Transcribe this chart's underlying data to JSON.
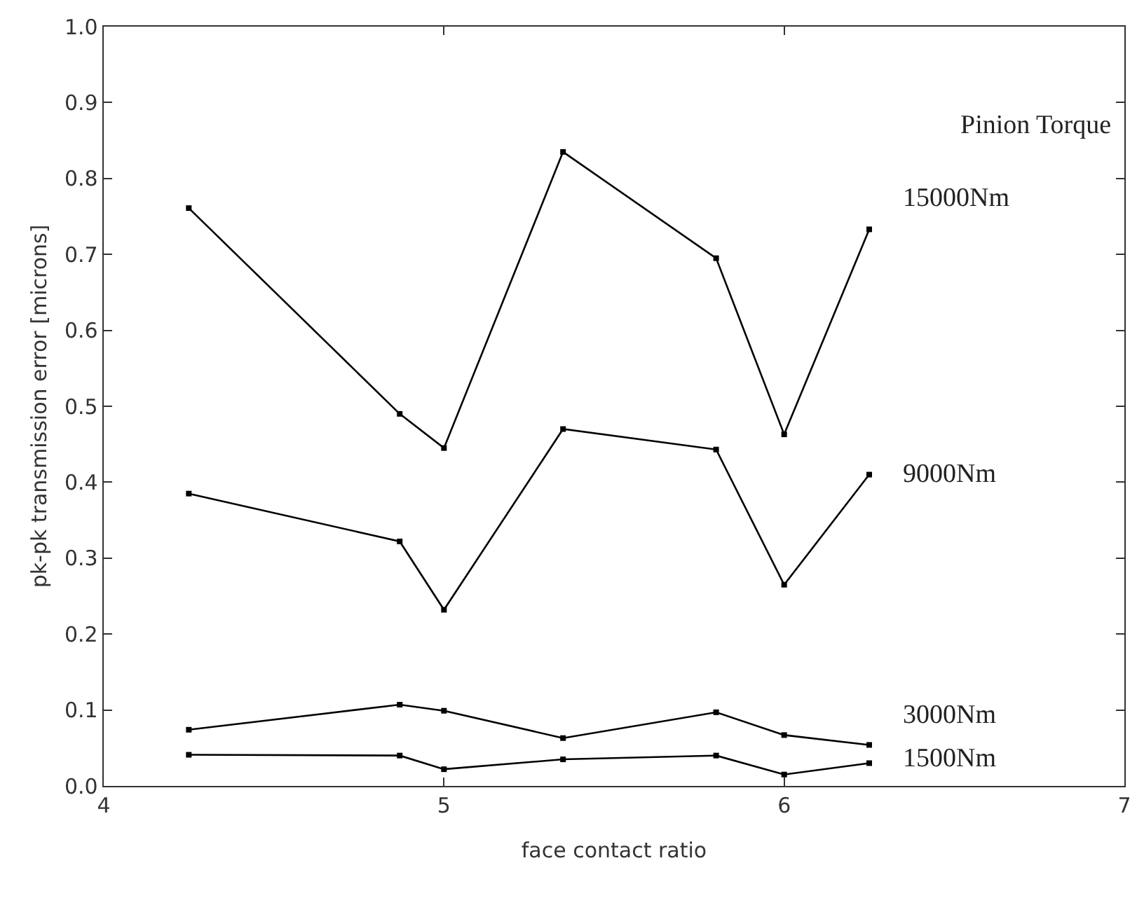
{
  "chart_data": {
    "type": "line",
    "xlabel": "face contact ratio",
    "ylabel": "pk-pk transmission error [microns]",
    "legend_title": "Pinion Torque",
    "x": [
      4.25,
      4.87,
      5.0,
      5.35,
      5.8,
      6.0,
      6.25
    ],
    "series": [
      {
        "name": "15000Nm",
        "color": "#000000",
        "values": [
          0.761,
          0.49,
          0.445,
          0.835,
          0.695,
          0.463,
          0.733
        ]
      },
      {
        "name": "9000Nm",
        "color": "#000000",
        "values": [
          0.385,
          0.322,
          0.232,
          0.47,
          0.443,
          0.265,
          0.41
        ]
      },
      {
        "name": "3000Nm",
        "color": "#000000",
        "values": [
          0.074,
          0.107,
          0.099,
          0.063,
          0.097,
          0.067,
          0.054
        ]
      },
      {
        "name": "1500Nm",
        "color": "#000000",
        "values": [
          0.041,
          0.04,
          0.022,
          0.035,
          0.04,
          0.015,
          0.03
        ]
      }
    ],
    "xlim": [
      4,
      7
    ],
    "xticks": [
      4,
      5,
      6,
      7
    ],
    "ylim": [
      0,
      1
    ],
    "yticks": [
      {
        "value": 0,
        "label": "0.0"
      },
      0.1,
      0.2,
      0.3,
      0.4,
      0.5,
      0.6,
      0.7,
      0.8,
      0.9,
      {
        "value": 1,
        "label": "1.0"
      }
    ],
    "grid": false,
    "legend": false,
    "marker": "square",
    "line_style": "solid"
  }
}
